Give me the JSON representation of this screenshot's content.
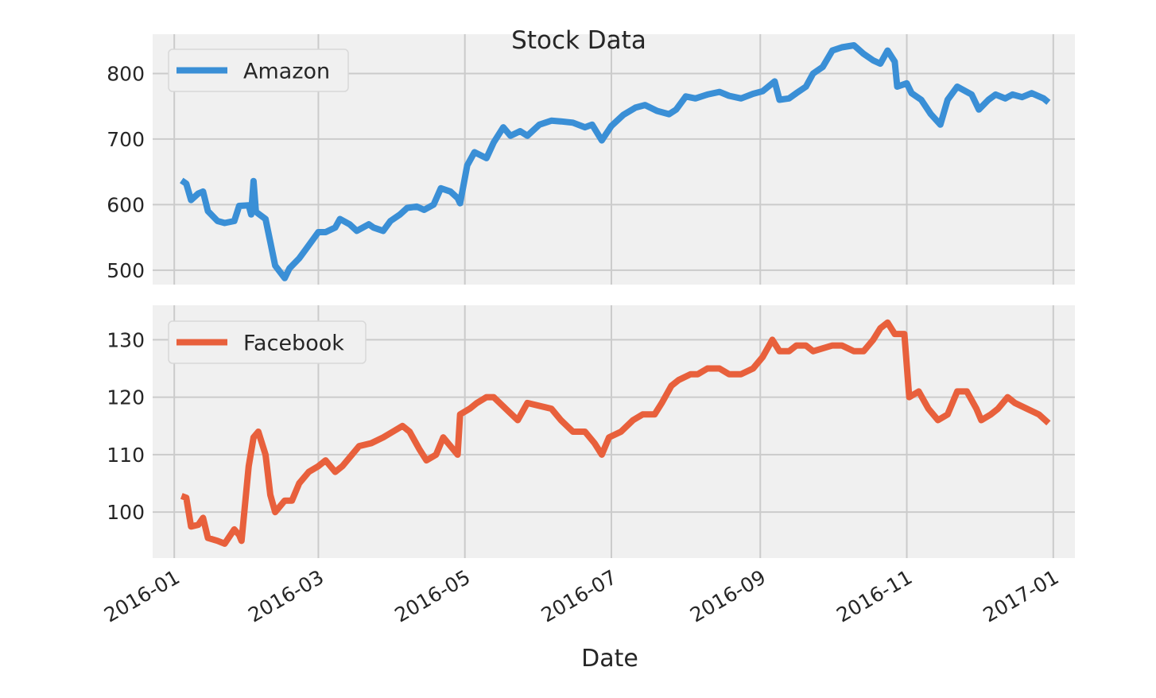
{
  "figure": {
    "title": "Stock Data"
  },
  "colors": {
    "panel_bg": "#f0f0f0",
    "grid": "#cbcbcb",
    "amazon": "#3a8fd6",
    "facebook": "#e8603c",
    "text": "#262626"
  },
  "chart_data": [
    {
      "type": "line",
      "title": "Stock Data",
      "xlabel": "",
      "ylabel": "",
      "x_type": "date",
      "xlim": [
        "2015-12-23",
        "2017-01-10"
      ],
      "ylim": [
        478,
        860
      ],
      "yticks": [
        500,
        600,
        700,
        800
      ],
      "grid": true,
      "legend_position": "top-left",
      "series": [
        {
          "name": "Amazon",
          "color": "#3a8fd6",
          "points": [
            [
              "2016-01-04",
              637
            ],
            [
              "2016-01-06",
              632
            ],
            [
              "2016-01-08",
              607
            ],
            [
              "2016-01-11",
              617
            ],
            [
              "2016-01-13",
              620
            ],
            [
              "2016-01-15",
              590
            ],
            [
              "2016-01-19",
              575
            ],
            [
              "2016-01-22",
              572
            ],
            [
              "2016-01-26",
              575
            ],
            [
              "2016-01-28",
              598
            ],
            [
              "2016-02-01",
              599
            ],
            [
              "2016-02-02",
              585
            ],
            [
              "2016-02-03",
              636
            ],
            [
              "2016-02-04",
              589
            ],
            [
              "2016-02-08",
              578
            ],
            [
              "2016-02-10",
              543
            ],
            [
              "2016-02-12",
              507
            ],
            [
              "2016-02-16",
              488
            ],
            [
              "2016-02-18",
              503
            ],
            [
              "2016-02-22",
              518
            ],
            [
              "2016-02-26",
              538
            ],
            [
              "2016-03-01",
              558
            ],
            [
              "2016-03-04",
              558
            ],
            [
              "2016-03-08",
              565
            ],
            [
              "2016-03-10",
              578
            ],
            [
              "2016-03-14",
              570
            ],
            [
              "2016-03-17",
              560
            ],
            [
              "2016-03-22",
              570
            ],
            [
              "2016-03-24",
              565
            ],
            [
              "2016-03-28",
              560
            ],
            [
              "2016-03-31",
              575
            ],
            [
              "2016-04-04",
              585
            ],
            [
              "2016-04-07",
              595
            ],
            [
              "2016-04-11",
              597
            ],
            [
              "2016-04-14",
              592
            ],
            [
              "2016-04-18",
              600
            ],
            [
              "2016-04-21",
              625
            ],
            [
              "2016-04-25",
              620
            ],
            [
              "2016-04-28",
              610
            ],
            [
              "2016-04-29",
              602
            ],
            [
              "2016-05-02",
              660
            ],
            [
              "2016-05-05",
              680
            ],
            [
              "2016-05-10",
              671
            ],
            [
              "2016-05-13",
              695
            ],
            [
              "2016-05-17",
              718
            ],
            [
              "2016-05-20",
              705
            ],
            [
              "2016-05-24",
              712
            ],
            [
              "2016-05-27",
              705
            ],
            [
              "2016-06-01",
              722
            ],
            [
              "2016-06-06",
              728
            ],
            [
              "2016-06-10",
              727
            ],
            [
              "2016-06-15",
              725
            ],
            [
              "2016-06-20",
              718
            ],
            [
              "2016-06-23",
              722
            ],
            [
              "2016-06-27",
              698
            ],
            [
              "2016-07-01",
              720
            ],
            [
              "2016-07-06",
              737
            ],
            [
              "2016-07-11",
              748
            ],
            [
              "2016-07-15",
              752
            ],
            [
              "2016-07-20",
              743
            ],
            [
              "2016-07-25",
              738
            ],
            [
              "2016-07-28",
              745
            ],
            [
              "2016-08-01",
              765
            ],
            [
              "2016-08-05",
              762
            ],
            [
              "2016-08-10",
              768
            ],
            [
              "2016-08-15",
              772
            ],
            [
              "2016-08-19",
              766
            ],
            [
              "2016-08-24",
              762
            ],
            [
              "2016-08-29",
              769
            ],
            [
              "2016-09-02",
              773
            ],
            [
              "2016-09-07",
              788
            ],
            [
              "2016-09-09",
              760
            ],
            [
              "2016-09-13",
              762
            ],
            [
              "2016-09-16",
              770
            ],
            [
              "2016-09-20",
              780
            ],
            [
              "2016-09-23",
              800
            ],
            [
              "2016-09-27",
              810
            ],
            [
              "2016-10-01",
              835
            ],
            [
              "2016-10-05",
              840
            ],
            [
              "2016-10-10",
              843
            ],
            [
              "2016-10-14",
              830
            ],
            [
              "2016-10-18",
              820
            ],
            [
              "2016-10-21",
              815
            ],
            [
              "2016-10-24",
              835
            ],
            [
              "2016-10-27",
              818
            ],
            [
              "2016-10-28",
              780
            ],
            [
              "2016-11-01",
              785
            ],
            [
              "2016-11-03",
              770
            ],
            [
              "2016-11-07",
              760
            ],
            [
              "2016-11-11",
              738
            ],
            [
              "2016-11-15",
              722
            ],
            [
              "2016-11-18",
              760
            ],
            [
              "2016-11-22",
              780
            ],
            [
              "2016-11-28",
              768
            ],
            [
              "2016-12-01",
              745
            ],
            [
              "2016-12-05",
              760
            ],
            [
              "2016-12-08",
              768
            ],
            [
              "2016-12-12",
              762
            ],
            [
              "2016-12-15",
              768
            ],
            [
              "2016-12-19",
              764
            ],
            [
              "2016-12-23",
              770
            ],
            [
              "2016-12-28",
              762
            ],
            [
              "2016-12-30",
              756
            ]
          ]
        }
      ]
    },
    {
      "type": "line",
      "title": "",
      "xlabel": "Date",
      "ylabel": "",
      "x_type": "date",
      "xlim": [
        "2015-12-23",
        "2017-01-10"
      ],
      "ylim": [
        92,
        136
      ],
      "yticks": [
        100,
        110,
        120,
        130
      ],
      "xticks": [
        "2016-01",
        "2016-03",
        "2016-05",
        "2016-07",
        "2016-09",
        "2016-11",
        "2017-01"
      ],
      "grid": true,
      "legend_position": "top-left",
      "series": [
        {
          "name": "Facebook",
          "color": "#e8603c",
          "points": [
            [
              "2016-01-04",
              102.8
            ],
            [
              "2016-01-06",
              102.5
            ],
            [
              "2016-01-08",
              97.5
            ],
            [
              "2016-01-11",
              97.8
            ],
            [
              "2016-01-13",
              99
            ],
            [
              "2016-01-15",
              95.5
            ],
            [
              "2016-01-19",
              95
            ],
            [
              "2016-01-22",
              94.5
            ],
            [
              "2016-01-26",
              97
            ],
            [
              "2016-01-28",
              96
            ],
            [
              "2016-01-29",
              95
            ],
            [
              "2016-02-01",
              108
            ],
            [
              "2016-02-03",
              113
            ],
            [
              "2016-02-05",
              114
            ],
            [
              "2016-02-08",
              110
            ],
            [
              "2016-02-10",
              103
            ],
            [
              "2016-02-12",
              100
            ],
            [
              "2016-02-16",
              102
            ],
            [
              "2016-02-19",
              102
            ],
            [
              "2016-02-22",
              105
            ],
            [
              "2016-02-26",
              107
            ],
            [
              "2016-03-01",
              108
            ],
            [
              "2016-03-04",
              109
            ],
            [
              "2016-03-08",
              107
            ],
            [
              "2016-03-11",
              108
            ],
            [
              "2016-03-15",
              110
            ],
            [
              "2016-03-18",
              111.5
            ],
            [
              "2016-03-23",
              112
            ],
            [
              "2016-03-28",
              113
            ],
            [
              "2016-04-01",
              114
            ],
            [
              "2016-04-05",
              115
            ],
            [
              "2016-04-08",
              114
            ],
            [
              "2016-04-12",
              111
            ],
            [
              "2016-04-15",
              109
            ],
            [
              "2016-04-19",
              110
            ],
            [
              "2016-04-22",
              113
            ],
            [
              "2016-04-26",
              111
            ],
            [
              "2016-04-28",
              110
            ],
            [
              "2016-04-29",
              117
            ],
            [
              "2016-05-03",
              118
            ],
            [
              "2016-05-06",
              119
            ],
            [
              "2016-05-10",
              120
            ],
            [
              "2016-05-13",
              120
            ],
            [
              "2016-05-18",
              118
            ],
            [
              "2016-05-23",
              116
            ],
            [
              "2016-05-27",
              119
            ],
            [
              "2016-06-01",
              118.5
            ],
            [
              "2016-06-06",
              118
            ],
            [
              "2016-06-10",
              116
            ],
            [
              "2016-06-15",
              114
            ],
            [
              "2016-06-20",
              114
            ],
            [
              "2016-06-24",
              112
            ],
            [
              "2016-06-27",
              110
            ],
            [
              "2016-06-30",
              113
            ],
            [
              "2016-07-05",
              114
            ],
            [
              "2016-07-10",
              116
            ],
            [
              "2016-07-14",
              117
            ],
            [
              "2016-07-19",
              117
            ],
            [
              "2016-07-22",
              119
            ],
            [
              "2016-07-26",
              122
            ],
            [
              "2016-07-29",
              123
            ],
            [
              "2016-08-03",
              124
            ],
            [
              "2016-08-06",
              124
            ],
            [
              "2016-08-10",
              125
            ],
            [
              "2016-08-15",
              125
            ],
            [
              "2016-08-19",
              124
            ],
            [
              "2016-08-24",
              124
            ],
            [
              "2016-08-29",
              125
            ],
            [
              "2016-09-02",
              127
            ],
            [
              "2016-09-06",
              130
            ],
            [
              "2016-09-09",
              128
            ],
            [
              "2016-09-13",
              128
            ],
            [
              "2016-09-16",
              129
            ],
            [
              "2016-09-20",
              129
            ],
            [
              "2016-09-23",
              128
            ],
            [
              "2016-09-27",
              128.5
            ],
            [
              "2016-10-01",
              129
            ],
            [
              "2016-10-05",
              129
            ],
            [
              "2016-10-10",
              128
            ],
            [
              "2016-10-14",
              128
            ],
            [
              "2016-10-18",
              130
            ],
            [
              "2016-10-21",
              132
            ],
            [
              "2016-10-24",
              133
            ],
            [
              "2016-10-27",
              131
            ],
            [
              "2016-10-31",
              131
            ],
            [
              "2016-11-02",
              120
            ],
            [
              "2016-11-06",
              121
            ],
            [
              "2016-11-10",
              118
            ],
            [
              "2016-11-14",
              116
            ],
            [
              "2016-11-18",
              117
            ],
            [
              "2016-11-22",
              121
            ],
            [
              "2016-11-26",
              121
            ],
            [
              "2016-11-30",
              118
            ],
            [
              "2016-12-02",
              116
            ],
            [
              "2016-12-06",
              117
            ],
            [
              "2016-12-09",
              118
            ],
            [
              "2016-12-13",
              120
            ],
            [
              "2016-12-16",
              119
            ],
            [
              "2016-12-21",
              118
            ],
            [
              "2016-12-26",
              117
            ],
            [
              "2016-12-30",
              115.5
            ]
          ]
        }
      ]
    }
  ]
}
